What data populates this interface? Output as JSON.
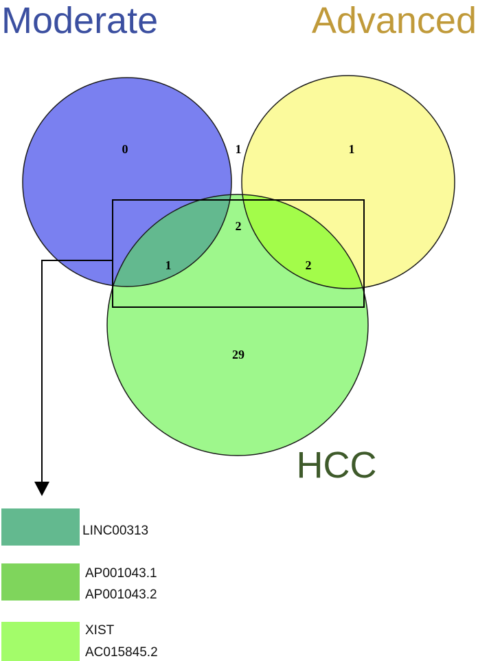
{
  "sets": {
    "moderate": {
      "label": "Moderate",
      "label_color": "#3b4fa0",
      "fill": "#7a80f0"
    },
    "advanced": {
      "label": "Advanced",
      "label_color": "#c09a3a",
      "fill": "#fbfa9c"
    },
    "hcc": {
      "label": "HCC",
      "label_color": "#3e5a2a",
      "fill": "#9ef78c"
    }
  },
  "regions": {
    "moderate_only": "0",
    "moderate_advanced": "1",
    "advanced_only": "1",
    "all_three": "2",
    "moderate_hcc": "1",
    "advanced_hcc": "2",
    "hcc_only": "29"
  },
  "legend": [
    {
      "color": "#63b98f",
      "lines": [
        "LINC00313"
      ]
    },
    {
      "color": "#7fd55c",
      "lines": [
        "AP001043.1",
        "AP001043.2"
      ]
    },
    {
      "color": "#a3fc6a",
      "lines": [
        "XIST",
        "AC015845.2"
      ]
    }
  ]
}
